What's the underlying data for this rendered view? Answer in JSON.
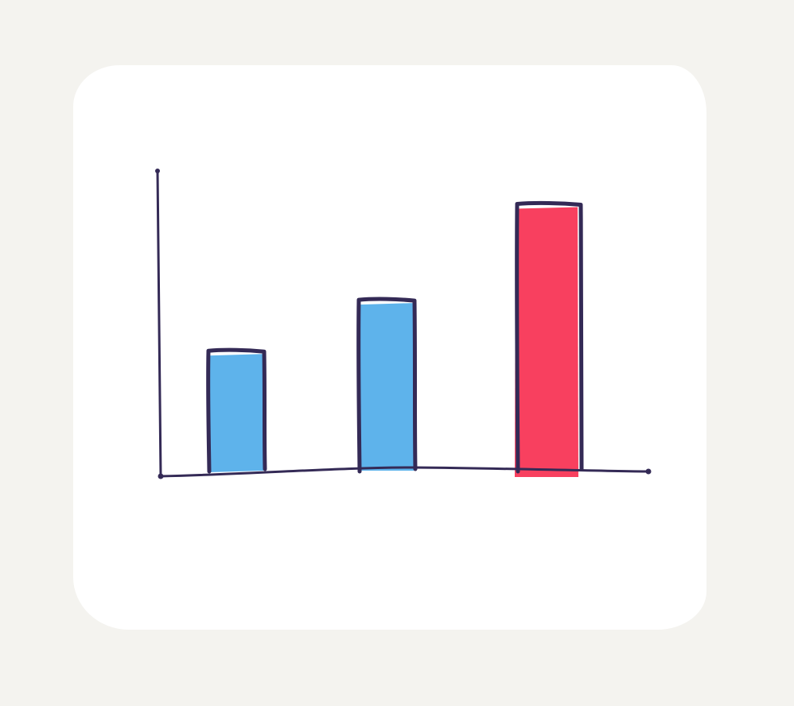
{
  "colors": {
    "background": "#f4f3ef",
    "card": "#ffffff",
    "outline": "#342a56",
    "bar_default": "#5eb3eb",
    "bar_highlight": "#f8405f"
  },
  "chart_data": {
    "type": "bar",
    "title": "",
    "xlabel": "",
    "ylabel": "",
    "categories": [
      "",
      "",
      ""
    ],
    "values": [
      40,
      57,
      89
    ],
    "highlight_index": 2,
    "ylim": [
      0,
      100
    ],
    "grid": false,
    "legend": "none",
    "style": "hand-drawn sketch"
  }
}
